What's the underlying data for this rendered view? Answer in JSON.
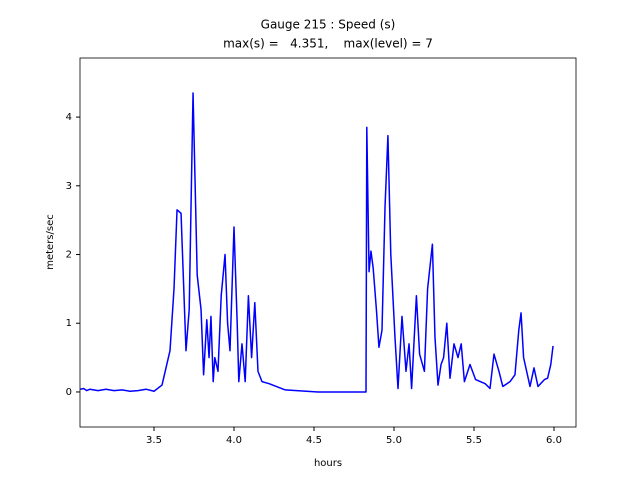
{
  "chart_data": {
    "type": "line",
    "title": [
      "Gauge 215 : Speed (s)",
      "max(s) =   4.351,    max(level) = 7"
    ],
    "xlabel": "hours",
    "ylabel": "meters/sec",
    "color": "#0000ff",
    "x": [
      3.04,
      3.06,
      3.08,
      3.1,
      3.15,
      3.2,
      3.25,
      3.3,
      3.35,
      3.4,
      3.45,
      3.5,
      3.55,
      3.6,
      3.625,
      3.644,
      3.669,
      3.7,
      3.72,
      3.744,
      3.77,
      3.794,
      3.81,
      3.83,
      3.844,
      3.856,
      3.87,
      3.88,
      3.9,
      3.92,
      3.944,
      3.96,
      3.975,
      4.0,
      4.02,
      4.03,
      4.05,
      4.07,
      4.09,
      4.11,
      4.13,
      4.15,
      4.175,
      4.22,
      4.32,
      4.525,
      4.825,
      4.83,
      4.844,
      4.856,
      4.87,
      4.89,
      4.906,
      4.925,
      4.944,
      4.962,
      4.98,
      5.006,
      5.025,
      5.05,
      5.075,
      5.094,
      5.11,
      5.14,
      5.16,
      5.19,
      5.21,
      5.24,
      5.256,
      5.275,
      5.294,
      5.31,
      5.33,
      5.35,
      5.375,
      5.4,
      5.42,
      5.44,
      5.475,
      5.51,
      5.57,
      5.6,
      5.625,
      5.656,
      5.68,
      5.725,
      5.756,
      5.78,
      5.794,
      5.81,
      5.85,
      5.875,
      5.9,
      5.94,
      5.96,
      5.98,
      5.994
    ],
    "values": [
      0.04,
      0.05,
      0.02,
      0.04,
      0.02,
      0.04,
      0.02,
      0.03,
      0.01,
      0.02,
      0.04,
      0.01,
      0.1,
      0.6,
      1.5,
      2.65,
      2.6,
      0.6,
      1.2,
      4.351,
      1.7,
      1.2,
      0.25,
      1.05,
      0.5,
      1.1,
      0.15,
      0.5,
      0.3,
      1.4,
      2.0,
      1.0,
      0.6,
      2.4,
      1.0,
      0.15,
      0.7,
      0.15,
      1.4,
      0.5,
      1.3,
      0.3,
      0.15,
      0.12,
      0.03,
      0,
      0,
      3.85,
      1.75,
      2.05,
      1.8,
      1.2,
      0.65,
      0.9,
      2.7,
      3.73,
      2.0,
      0.8,
      0.05,
      1.1,
      0.3,
      0.7,
      0.05,
      1.4,
      0.55,
      0.3,
      1.5,
      2.15,
      0.8,
      0.1,
      0.4,
      0.5,
      1.0,
      0.2,
      0.7,
      0.5,
      0.7,
      0.15,
      0.4,
      0.18,
      0.12,
      0.05,
      0.55,
      0.3,
      0.08,
      0.15,
      0.25,
      0.9,
      1.15,
      0.5,
      0.08,
      0.35,
      0.08,
      0.18,
      0.2,
      0.4,
      0.67
    ],
    "xlim": [
      3.0375,
      6.1375
    ],
    "ylim": [
      -0.51,
      4.86
    ],
    "xticks": [
      3.5,
      {
        "value": 4,
        "label": "4.0"
      },
      4.5,
      {
        "value": 5,
        "label": "5.0"
      },
      5.5,
      {
        "value": 6,
        "label": "6.0"
      }
    ],
    "yticks": [
      0,
      1,
      2,
      3,
      4
    ]
  }
}
